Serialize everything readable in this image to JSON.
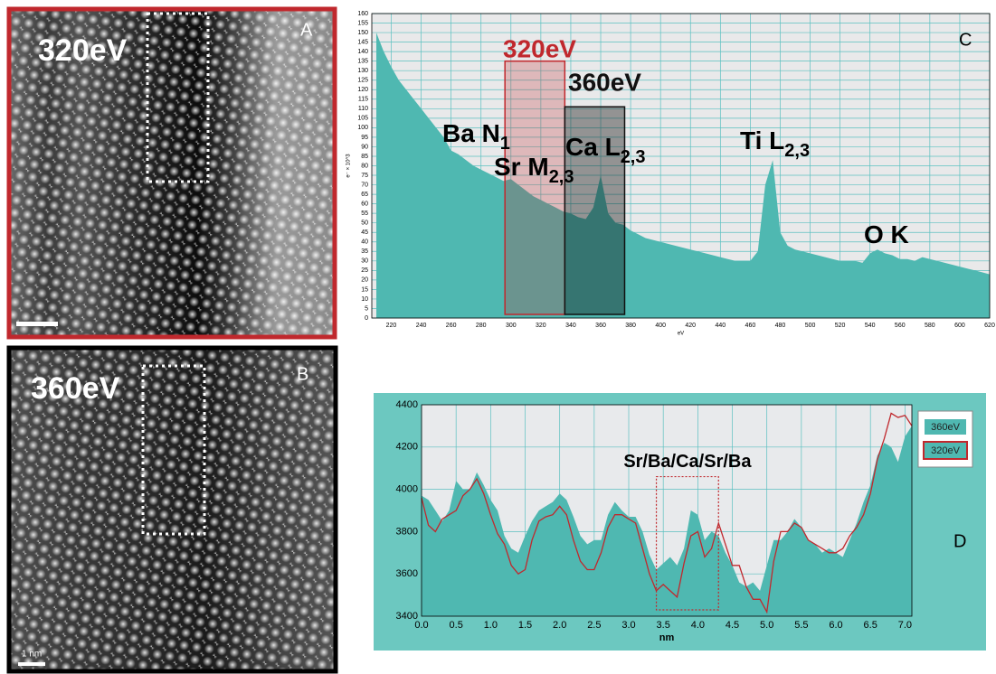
{
  "images": [
    {
      "label": "320eV",
      "letter": "A"
    },
    {
      "label": "360eV",
      "letter": "B",
      "scale_bar": "1 nm"
    }
  ],
  "chart_data": [
    {
      "type": "area",
      "letter": "C",
      "x_label": "eV",
      "y_label": "e⁻ × 10^3",
      "x": [
        210,
        215,
        220,
        225,
        230,
        235,
        240,
        245,
        250,
        255,
        260,
        265,
        270,
        275,
        280,
        285,
        290,
        295,
        300,
        305,
        310,
        315,
        320,
        325,
        330,
        335,
        340,
        345,
        350,
        355,
        360,
        365,
        370,
        375,
        380,
        385,
        390,
        395,
        400,
        405,
        410,
        415,
        420,
        425,
        430,
        435,
        440,
        445,
        450,
        455,
        460,
        465,
        470,
        475,
        480,
        485,
        490,
        495,
        500,
        505,
        510,
        515,
        520,
        525,
        530,
        535,
        540,
        545,
        550,
        555,
        560,
        565,
        570,
        575,
        580,
        585,
        590,
        595,
        600,
        605,
        610,
        615,
        620
      ],
      "series": [
        {
          "color": "#4fb8b1",
          "values": [
            150,
            140,
            132,
            125,
            120,
            115,
            110,
            105,
            100,
            95,
            88,
            86,
            83,
            80,
            78,
            76,
            74,
            72,
            73,
            70,
            67,
            64,
            62,
            60,
            58,
            56,
            55,
            53,
            52,
            58,
            75,
            55,
            50,
            49,
            46,
            44,
            42,
            41,
            40,
            39,
            38,
            37,
            36,
            35,
            34,
            33,
            32,
            31,
            30,
            30,
            30,
            35,
            70,
            83,
            45,
            38,
            36,
            35,
            34,
            33,
            32,
            31,
            30,
            30,
            30,
            29,
            34,
            36,
            34,
            33,
            31,
            31,
            30,
            32,
            31,
            30,
            29,
            28,
            27,
            26,
            25,
            24,
            23
          ]
        }
      ],
      "xlim": [
        207,
        620
      ],
      "ylim": [
        0,
        160
      ],
      "xticks": [
        220,
        240,
        260,
        280,
        300,
        320,
        340,
        360,
        380,
        400,
        420,
        440,
        460,
        480,
        500,
        520,
        540,
        560,
        580,
        600,
        620
      ],
      "yticks": [
        0,
        5,
        10,
        15,
        20,
        25,
        30,
        35,
        40,
        45,
        50,
        55,
        60,
        65,
        70,
        75,
        80,
        85,
        90,
        95,
        100,
        105,
        110,
        115,
        120,
        125,
        130,
        135,
        140,
        145,
        150,
        155,
        160
      ],
      "grid": true,
      "windows": [
        {
          "label": "320eV",
          "x": [
            296,
            336
          ],
          "top": 135,
          "color": "#c0282d"
        },
        {
          "label": "360eV",
          "x": [
            336,
            376
          ],
          "top": 111,
          "color": "#111111"
        }
      ],
      "annotations": [
        {
          "text": "Ba N",
          "sub": "1"
        },
        {
          "text": "Sr M",
          "sub": "2,3"
        },
        {
          "text": "Ca L",
          "sub": "2,3"
        },
        {
          "text": "Ti L",
          "sub": "2,3"
        },
        {
          "text": "O K"
        }
      ]
    },
    {
      "type": "area",
      "letter": "D",
      "x_label": "nm",
      "x": [
        0,
        0.1,
        0.2,
        0.3,
        0.4,
        0.5,
        0.6,
        0.7,
        0.8,
        0.9,
        1,
        1.1,
        1.2,
        1.3,
        1.4,
        1.5,
        1.6,
        1.7,
        1.8,
        1.9,
        2,
        2.1,
        2.2,
        2.3,
        2.4,
        2.5,
        2.6,
        2.7,
        2.8,
        2.9,
        3,
        3.1,
        3.2,
        3.3,
        3.4,
        3.5,
        3.6,
        3.7,
        3.8,
        3.9,
        4,
        4.1,
        4.2,
        4.3,
        4.4,
        4.5,
        4.6,
        4.7,
        4.8,
        4.9,
        5,
        5.1,
        5.2,
        5.3,
        5.4,
        5.5,
        5.6,
        5.7,
        5.8,
        5.9,
        6,
        6.1,
        6.2,
        6.3,
        6.4,
        6.5,
        6.6,
        6.7,
        6.8,
        6.9,
        7,
        7.1
      ],
      "series": [
        {
          "name": "360eV",
          "color": "#4fb8b1",
          "values": [
            3970,
            3950,
            3900,
            3850,
            3900,
            4040,
            4000,
            4000,
            4080,
            4020,
            3950,
            3900,
            3780,
            3720,
            3700,
            3780,
            3850,
            3900,
            3920,
            3940,
            3980,
            3950,
            3870,
            3780,
            3740,
            3760,
            3760,
            3880,
            3940,
            3900,
            3870,
            3870,
            3800,
            3690,
            3620,
            3650,
            3680,
            3640,
            3720,
            3900,
            3880,
            3760,
            3800,
            3780,
            3700,
            3640,
            3560,
            3540,
            3560,
            3520,
            3640,
            3760,
            3760,
            3800,
            3860,
            3820,
            3760,
            3740,
            3700,
            3720,
            3700,
            3680,
            3760,
            3840,
            3940,
            4020,
            4160,
            4220,
            4200,
            4130,
            4250,
            4300
          ]
        },
        {
          "name": "320eV",
          "color": "#c0282d",
          "values": [
            3960,
            3830,
            3800,
            3860,
            3880,
            3900,
            3970,
            4000,
            4050,
            3980,
            3880,
            3790,
            3740,
            3640,
            3600,
            3620,
            3760,
            3850,
            3870,
            3880,
            3920,
            3880,
            3760,
            3660,
            3620,
            3620,
            3700,
            3820,
            3880,
            3880,
            3860,
            3840,
            3720,
            3600,
            3520,
            3550,
            3520,
            3490,
            3650,
            3780,
            3800,
            3680,
            3720,
            3840,
            3740,
            3640,
            3640,
            3540,
            3480,
            3480,
            3420,
            3660,
            3800,
            3800,
            3840,
            3820,
            3760,
            3740,
            3720,
            3700,
            3700,
            3720,
            3780,
            3820,
            3880,
            3980,
            4140,
            4240,
            4360,
            4340,
            4350,
            4300
          ]
        }
      ],
      "xlim": [
        0,
        7.1
      ],
      "ylim": [
        3400,
        4400
      ],
      "xticks": [
        {
          "value": 0,
          "label": "0.0"
        },
        0.5,
        {
          "value": 1,
          "label": "1.0"
        },
        1.5,
        {
          "value": 2,
          "label": "2.0"
        },
        2.5,
        {
          "value": 3,
          "label": "3.0"
        },
        3.5,
        {
          "value": 4,
          "label": "4.0"
        },
        4.5,
        {
          "value": 5,
          "label": "5.0"
        },
        5.5,
        {
          "value": 6,
          "label": "6.0"
        },
        6.5,
        {
          "value": 7,
          "label": "7.0"
        }
      ],
      "yticks": [
        3400,
        3600,
        3800,
        4000,
        4200,
        4400
      ],
      "grid": true,
      "legend": "right",
      "annotation": {
        "text": "Sr/Ba/Ca/Sr/Ba",
        "box_x": [
          3.4,
          4.3
        ],
        "box_y": [
          3430,
          4060
        ]
      }
    }
  ]
}
